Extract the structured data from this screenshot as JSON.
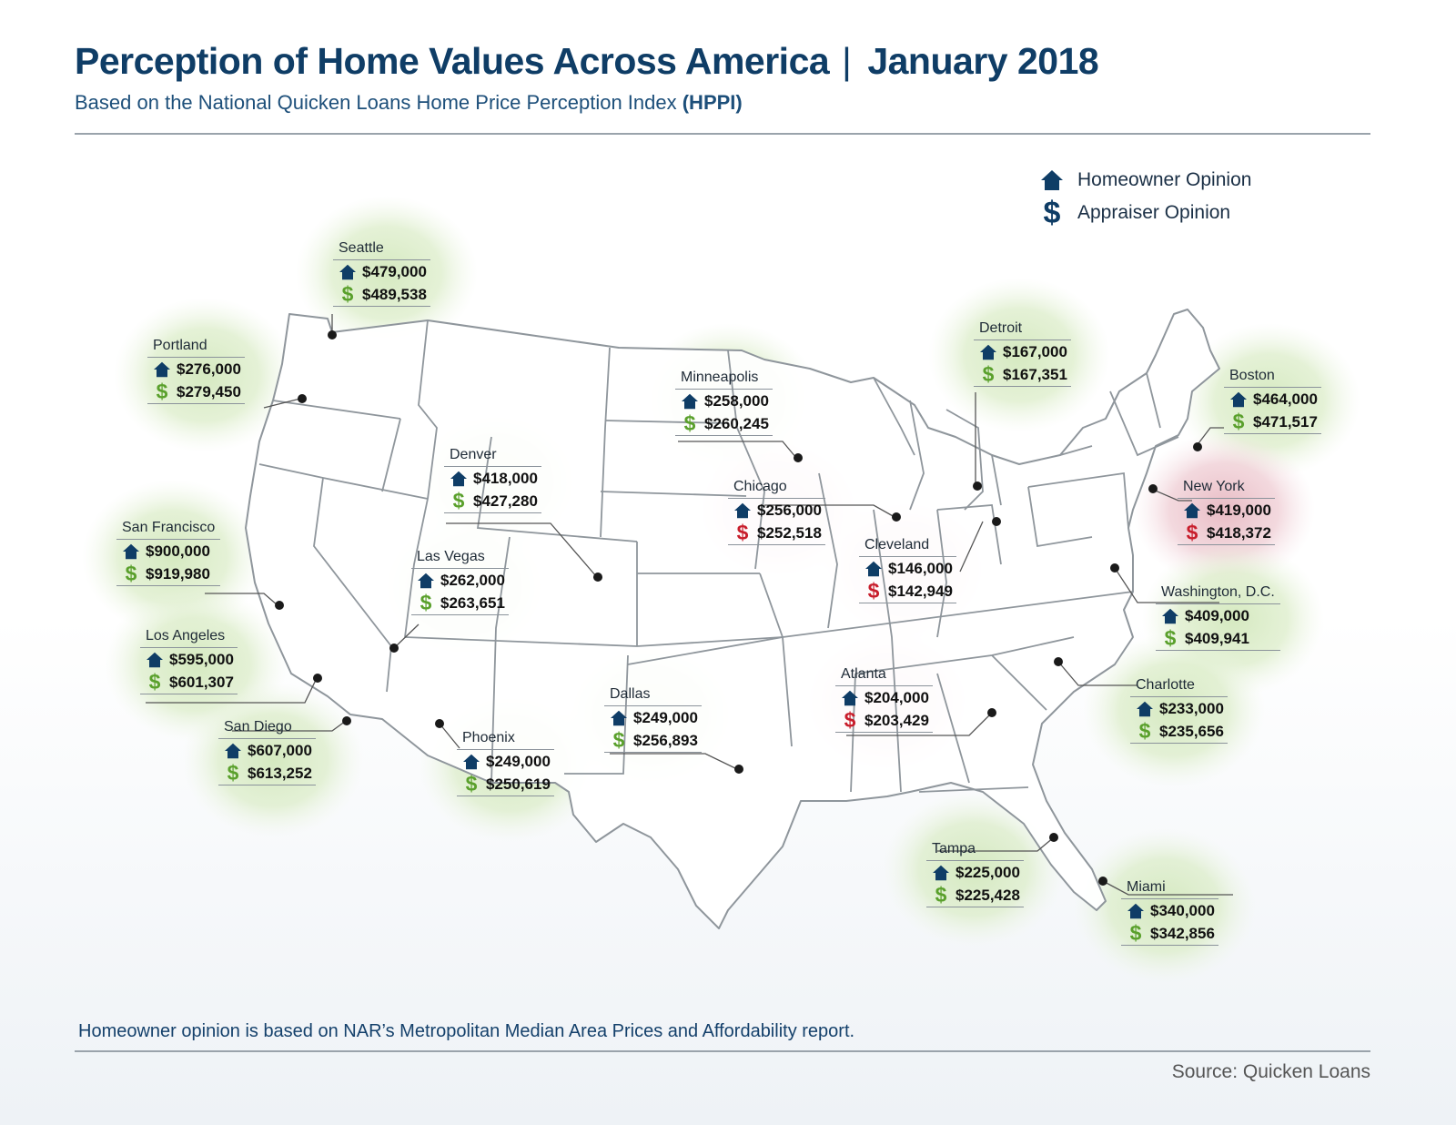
{
  "header": {
    "title_main": "Perception of Home Values Across America",
    "title_sep": "|",
    "title_date": "January 2018",
    "subtitle_text": "Based on the National Quicken Loans Home Price Perception Index ",
    "subtitle_bold": "(HPPI)"
  },
  "legend": {
    "homeowner": "Homeowner Opinion",
    "appraiser": "Appraiser Opinion"
  },
  "colors": {
    "homeowner_icon": "#0f3d66",
    "appraiser_above": "#5aa02c",
    "appraiser_below": "#c81e2c",
    "halo_green": "#d7e9c4",
    "halo_red": "#ebc6cd"
  },
  "cities": {
    "seattle": {
      "name": "Seattle",
      "homeowner": "$479,000",
      "appraiser": "$489,538",
      "status": "green"
    },
    "portland": {
      "name": "Portland",
      "homeowner": "$276,000",
      "appraiser": "$279,450",
      "status": "green"
    },
    "san_francisco": {
      "name": "San Francisco",
      "homeowner": "$900,000",
      "appraiser": "$919,980",
      "status": "green"
    },
    "los_angeles": {
      "name": "Los Angeles",
      "homeowner": "$595,000",
      "appraiser": "$601,307",
      "status": "green"
    },
    "san_diego": {
      "name": "San Diego",
      "homeowner": "$607,000",
      "appraiser": "$613,252",
      "status": "green"
    },
    "denver": {
      "name": "Denver",
      "homeowner": "$418,000",
      "appraiser": "$427,280",
      "status": "green"
    },
    "las_vegas": {
      "name": "Las Vegas",
      "homeowner": "$262,000",
      "appraiser": "$263,651",
      "status": "green"
    },
    "phoenix": {
      "name": "Phoenix",
      "homeowner": "$249,000",
      "appraiser": "$250,619",
      "status": "green"
    },
    "dallas": {
      "name": "Dallas",
      "homeowner": "$249,000",
      "appraiser": "$256,893",
      "status": "green"
    },
    "minneapolis": {
      "name": "Minneapolis",
      "homeowner": "$258,000",
      "appraiser": "$260,245",
      "status": "green"
    },
    "chicago": {
      "name": "Chicago",
      "homeowner": "$256,000",
      "appraiser": "$252,518",
      "status": "red"
    },
    "cleveland": {
      "name": "Cleveland",
      "homeowner": "$146,000",
      "appraiser": "$142,949",
      "status": "red"
    },
    "atlanta": {
      "name": "Atlanta",
      "homeowner": "$204,000",
      "appraiser": "$203,429",
      "status": "red"
    },
    "detroit": {
      "name": "Detroit",
      "homeowner": "$167,000",
      "appraiser": "$167,351",
      "status": "green"
    },
    "boston": {
      "name": "Boston",
      "homeowner": "$464,000",
      "appraiser": "$471,517",
      "status": "green"
    },
    "new_york": {
      "name": "New York",
      "homeowner": "$419,000",
      "appraiser": "$418,372",
      "status": "red"
    },
    "washington_dc": {
      "name": "Washington, D.C.",
      "homeowner": "$409,000",
      "appraiser": "$409,941",
      "status": "green"
    },
    "charlotte": {
      "name": "Charlotte",
      "homeowner": "$233,000",
      "appraiser": "$235,656",
      "status": "green"
    },
    "tampa": {
      "name": "Tampa",
      "homeowner": "$225,000",
      "appraiser": "$225,428",
      "status": "green"
    },
    "miami": {
      "name": "Miami",
      "homeowner": "$340,000",
      "appraiser": "$342,856",
      "status": "green"
    }
  },
  "footer": {
    "note": "Homeowner opinion is based on NAR’s Metropolitan Median Area Prices and Affordability report.",
    "source": "Source: Quicken Loans"
  }
}
